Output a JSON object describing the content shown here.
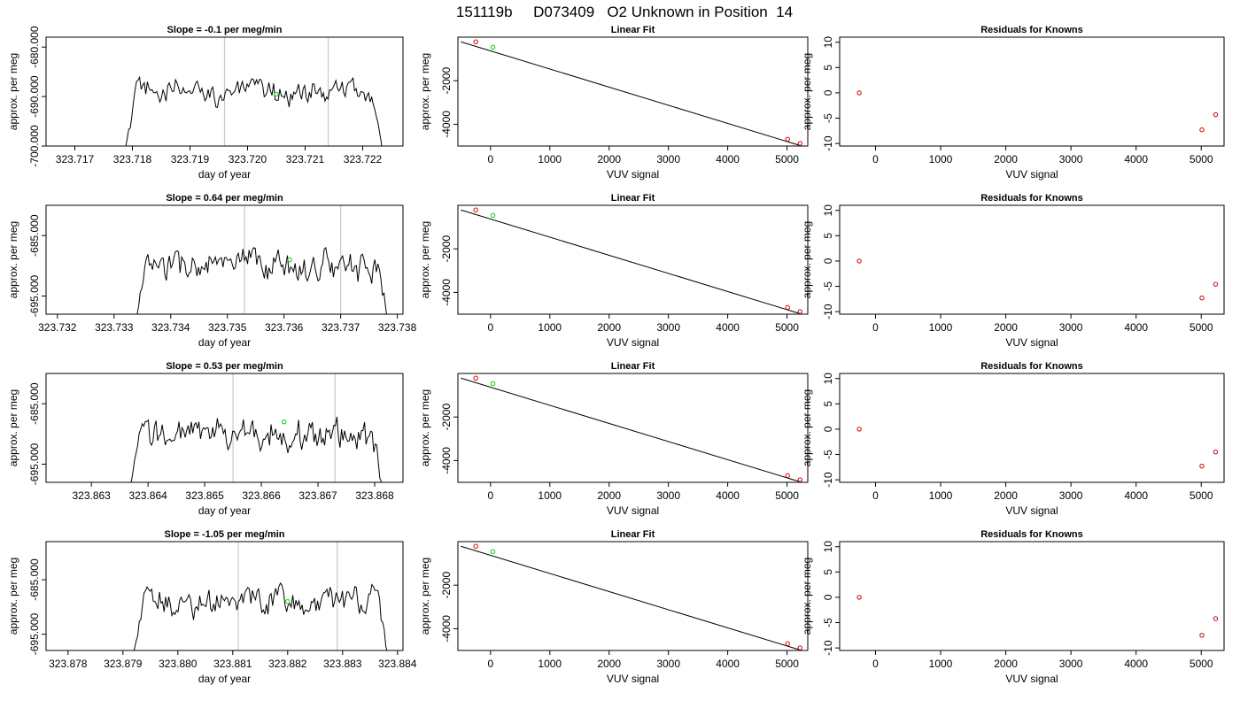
{
  "figure": {
    "title": "151119b     D073409   O2 Unknown in Position  14"
  },
  "labels": {
    "time_xlabel": "day of year",
    "fit_xlabel": "VUV signal",
    "ylabel": "approx. per meg",
    "fit_title": "Linear Fit",
    "resid_title": "Residuals for Knowns"
  },
  "colors": {
    "trace": "#000000",
    "vline": "#c8c8c8",
    "unknown_point": "#00cc00",
    "known_point": "#cc0000",
    "axes": "#000000"
  },
  "chart_data": [
    {
      "type": "line",
      "panel": "time-series",
      "row": 1,
      "title": "Slope =  -0.1  per meg/min",
      "xlabel": "day of year",
      "ylabel": "approx. per meg",
      "xlim": [
        323.7165,
        323.7227
      ],
      "ylim": [
        -700,
        -678
      ],
      "xticks": [
        323.717,
        323.718,
        323.719,
        323.72,
        323.721,
        323.722
      ],
      "yticks": [
        -700,
        -690,
        -680
      ],
      "trace_start": 323.7178,
      "trace_end": 323.7224,
      "trace_mean": -689.0,
      "vlines": [
        323.7196,
        323.7214
      ],
      "unknown_point": {
        "x": 323.7205,
        "y": -689.5
      }
    },
    {
      "type": "scatter",
      "panel": "linear-fit",
      "row": 1,
      "title": "Linear Fit",
      "xlabel": "VUV signal",
      "ylabel": "approx. per meg",
      "xlim": [
        -550,
        5350
      ],
      "ylim": [
        -5000,
        0
      ],
      "xticks": [
        0,
        1000,
        2000,
        3000,
        4000,
        5000
      ],
      "yticks": [
        -4000,
        -2000
      ],
      "line": {
        "x": [
          -500,
          5200
        ],
        "y": [
          -213,
          -4960
        ]
      },
      "known_points": [
        {
          "x": -250,
          "y": -213
        },
        {
          "x": 5010,
          "y": -4690
        },
        {
          "x": 5220,
          "y": -4880
        }
      ],
      "unknown_point": {
        "x": 40,
        "y": -460
      }
    },
    {
      "type": "scatter",
      "panel": "residuals",
      "row": 1,
      "title": "Residuals for Knowns",
      "xlabel": "VUV signal",
      "ylabel": "approx. per meg",
      "xlim": [
        -550,
        5350
      ],
      "ylim": [
        -10.5,
        11
      ],
      "xticks": [
        0,
        1000,
        2000,
        3000,
        4000,
        5000
      ],
      "yticks": [
        -10,
        -5,
        0,
        5,
        10
      ],
      "points": [
        {
          "x": -250,
          "y": 0
        },
        {
          "x": 5010,
          "y": -7.3
        },
        {
          "x": 5220,
          "y": -4.3
        }
      ]
    },
    {
      "type": "line",
      "panel": "time-series",
      "row": 2,
      "title": "Slope =  0.64  per meg/min",
      "xlabel": "day of year",
      "ylabel": "approx. per meg",
      "xlim": [
        323.7318,
        323.7381
      ],
      "ylim": [
        -698,
        -680
      ],
      "xticks": [
        323.732,
        323.733,
        323.734,
        323.735,
        323.736,
        323.737,
        323.738
      ],
      "yticks": [
        -695,
        -685
      ],
      "trace_start": 323.7333,
      "trace_end": 323.7379,
      "trace_mean": -690.0,
      "vlines": [
        323.7353,
        323.737
      ],
      "unknown_point": {
        "x": 323.7361,
        "y": -689.0
      }
    },
    {
      "type": "scatter",
      "panel": "linear-fit",
      "row": 2,
      "title": "Linear Fit",
      "xlabel": "VUV signal",
      "ylabel": "approx. per meg",
      "xlim": [
        -550,
        5350
      ],
      "ylim": [
        -5000,
        0
      ],
      "xticks": [
        0,
        1000,
        2000,
        3000,
        4000,
        5000
      ],
      "yticks": [
        -4000,
        -2000
      ],
      "line": {
        "x": [
          -500,
          5200
        ],
        "y": [
          -213,
          -4960
        ]
      },
      "known_points": [
        {
          "x": -250,
          "y": -213
        },
        {
          "x": 5010,
          "y": -4690
        },
        {
          "x": 5220,
          "y": -4880
        }
      ],
      "unknown_point": {
        "x": 40,
        "y": -460
      }
    },
    {
      "type": "scatter",
      "panel": "residuals",
      "row": 2,
      "title": "Residuals for Knowns",
      "xlabel": "VUV signal",
      "ylabel": "approx. per meg",
      "xlim": [
        -550,
        5350
      ],
      "ylim": [
        -10.5,
        11
      ],
      "xticks": [
        0,
        1000,
        2000,
        3000,
        4000,
        5000
      ],
      "yticks": [
        -10,
        -5,
        0,
        5,
        10
      ],
      "points": [
        {
          "x": -250,
          "y": 0
        },
        {
          "x": 5010,
          "y": -7.3
        },
        {
          "x": 5220,
          "y": -4.6
        }
      ]
    },
    {
      "type": "line",
      "panel": "time-series",
      "row": 3,
      "title": "Slope =  0.53  per meg/min",
      "xlabel": "day of year",
      "ylabel": "approx. per meg",
      "xlim": [
        323.8622,
        323.8685
      ],
      "ylim": [
        -698,
        -680
      ],
      "xticks": [
        323.863,
        323.864,
        323.865,
        323.866,
        323.867,
        323.868
      ],
      "yticks": [
        -695,
        -685
      ],
      "trace_start": 323.8636,
      "trace_end": 323.8682,
      "trace_mean": -690.0,
      "vlines": [
        323.8655,
        323.8673
      ],
      "unknown_point": {
        "x": 323.8664,
        "y": -688.0
      }
    },
    {
      "type": "scatter",
      "panel": "linear-fit",
      "row": 3,
      "title": "Linear Fit",
      "xlabel": "VUV signal",
      "ylabel": "approx. per meg",
      "xlim": [
        -550,
        5350
      ],
      "ylim": [
        -5000,
        0
      ],
      "xticks": [
        0,
        1000,
        2000,
        3000,
        4000,
        5000
      ],
      "yticks": [
        -4000,
        -2000
      ],
      "line": {
        "x": [
          -500,
          5200
        ],
        "y": [
          -213,
          -4960
        ]
      },
      "known_points": [
        {
          "x": -250,
          "y": -213
        },
        {
          "x": 5010,
          "y": -4690
        },
        {
          "x": 5220,
          "y": -4880
        }
      ],
      "unknown_point": {
        "x": 40,
        "y": -460
      }
    },
    {
      "type": "scatter",
      "panel": "residuals",
      "row": 3,
      "title": "Residuals for Knowns",
      "xlabel": "VUV signal",
      "ylabel": "approx. per meg",
      "xlim": [
        -550,
        5350
      ],
      "ylim": [
        -10.5,
        11
      ],
      "xticks": [
        0,
        1000,
        2000,
        3000,
        4000,
        5000
      ],
      "yticks": [
        -10,
        -5,
        0,
        5,
        10
      ],
      "points": [
        {
          "x": -250,
          "y": 0
        },
        {
          "x": 5010,
          "y": -7.3
        },
        {
          "x": 5220,
          "y": -4.5
        }
      ]
    },
    {
      "type": "line",
      "panel": "time-series",
      "row": 4,
      "title": "Slope =  -1.05  per meg/min",
      "xlabel": "day of year",
      "ylabel": "approx. per meg",
      "xlim": [
        323.8776,
        323.8841
      ],
      "ylim": [
        -698,
        -678
      ],
      "xticks": [
        323.878,
        323.879,
        323.88,
        323.881,
        323.882,
        323.883,
        323.884
      ],
      "yticks": [
        -695,
        -685
      ],
      "trace_start": 323.8791,
      "trace_end": 323.8839,
      "trace_mean": -689.0,
      "vlines": [
        323.8811,
        323.8829
      ],
      "unknown_point": {
        "x": 323.882,
        "y": -689.0
      }
    },
    {
      "type": "scatter",
      "panel": "linear-fit",
      "row": 4,
      "title": "Linear Fit",
      "xlabel": "VUV signal",
      "ylabel": "approx. per meg",
      "xlim": [
        -550,
        5350
      ],
      "ylim": [
        -5000,
        0
      ],
      "xticks": [
        0,
        1000,
        2000,
        3000,
        4000,
        5000
      ],
      "yticks": [
        -4000,
        -2000
      ],
      "line": {
        "x": [
          -500,
          5200
        ],
        "y": [
          -213,
          -4960
        ]
      },
      "known_points": [
        {
          "x": -250,
          "y": -213
        },
        {
          "x": 5010,
          "y": -4690
        },
        {
          "x": 5220,
          "y": -4880
        }
      ],
      "unknown_point": {
        "x": 40,
        "y": -460
      }
    },
    {
      "type": "scatter",
      "panel": "residuals",
      "row": 4,
      "title": "Residuals for Knowns",
      "xlabel": "VUV signal",
      "ylabel": "approx. per meg",
      "xlim": [
        -550,
        5350
      ],
      "ylim": [
        -10.5,
        11
      ],
      "xticks": [
        0,
        1000,
        2000,
        3000,
        4000,
        5000
      ],
      "yticks": [
        -10,
        -5,
        0,
        5,
        10
      ],
      "points": [
        {
          "x": -250,
          "y": 0
        },
        {
          "x": 5010,
          "y": -7.5
        },
        {
          "x": 5220,
          "y": -4.2
        }
      ]
    }
  ]
}
